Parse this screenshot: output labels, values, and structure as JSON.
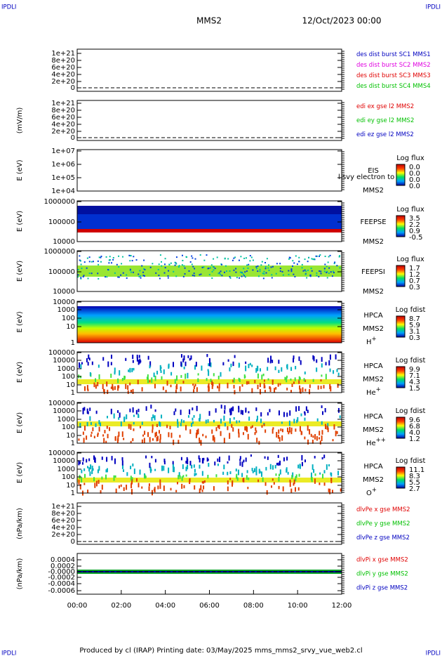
{
  "header": {
    "corner_left": "IPDLI",
    "corner_right": "IPDLI",
    "title": "MMS2",
    "date": "12/Oct/2023 00:00"
  },
  "panels": [
    {
      "ylabel": "",
      "yticks": [
        "1e+21",
        "8e+20",
        "6e+20",
        "4e+20",
        "2e+20",
        "0"
      ],
      "legend": [
        {
          "text": "des dist burst SC1 MMS1",
          "color": "#0000c0"
        },
        {
          "text": "des dist burst SC2 MMS2",
          "color": "#e000e0"
        },
        {
          "text": "des dist burst SC3 MMS3",
          "color": "#e00000"
        },
        {
          "text": "des dist burst SC4 MMS4",
          "color": "#00c000"
        }
      ]
    },
    {
      "ylabel": "(mV/m)",
      "yticks": [
        "1e+21",
        "8e+20",
        "6e+20",
        "4e+20",
        "2e+20",
        "0"
      ],
      "legend": [
        {
          "text": "edi ex gse l2 MMS2",
          "color": "#e00000"
        },
        {
          "text": "edi ey gse l2 MMS2",
          "color": "#00c000"
        },
        {
          "text": "edi ez gse l2 MMS2",
          "color": "#0000c0"
        }
      ]
    },
    {
      "ylabel": "E (eV)",
      "yticks": [
        "1e+07",
        "1e+06",
        "1e+05",
        "1e+04"
      ],
      "instrument": [
        "EIS",
        "MMS2"
      ],
      "overlay": "l svy electron to",
      "colorbar": {
        "title": "Log flux",
        "labels": [
          "0.0",
          "0.0",
          "0.0",
          "0.0"
        ]
      }
    },
    {
      "ylabel": "E (eV)",
      "yticks": [
        "1000000",
        "100000",
        "10000"
      ],
      "instrument": [
        "FEEPSE",
        "MMS2"
      ],
      "colorbar": {
        "title": "Log flux",
        "labels": [
          "3.5",
          "2.2",
          "0.9",
          "-0.5"
        ]
      }
    },
    {
      "ylabel": "E (eV)",
      "yticks": [
        "1000000",
        "100000",
        "10000"
      ],
      "instrument": [
        "FEEPSI",
        "MMS2"
      ],
      "colorbar": {
        "title": "Log flux",
        "labels": [
          "1.7",
          "1.2",
          "0.7",
          "0.3"
        ]
      }
    },
    {
      "ylabel": "E (eV)",
      "yticks": [
        "10000",
        "1000",
        "100",
        "10",
        "1"
      ],
      "instrument": [
        "HPCA",
        "MMS2"
      ],
      "species": {
        "base": "H",
        "sup": "+"
      },
      "colorbar": {
        "title": "Log fdist",
        "labels": [
          "8.7",
          "5.9",
          "3.1",
          "0.3"
        ]
      }
    },
    {
      "ylabel": "E (eV)",
      "yticks": [
        "100000",
        "10000",
        "1000",
        "100",
        "10",
        "1"
      ],
      "instrument": [
        "HPCA",
        "MMS2"
      ],
      "species": {
        "base": "He",
        "sup": "+"
      },
      "colorbar": {
        "title": "Log fdist",
        "labels": [
          "9.9",
          "7.1",
          "4.3",
          "1.5"
        ]
      }
    },
    {
      "ylabel": "E (eV)",
      "yticks": [
        "100000",
        "10000",
        "1000",
        "100",
        "10",
        "1"
      ],
      "instrument": [
        "HPCA",
        "MMS2"
      ],
      "species": {
        "base": "He",
        "sup": "++"
      },
      "colorbar": {
        "title": "Log fdist",
        "labels": [
          "9.6",
          "6.8",
          "4.0",
          "1.2"
        ]
      }
    },
    {
      "ylabel": "E (eV)",
      "yticks": [
        "100000",
        "10000",
        "1000",
        "100",
        "10",
        "1"
      ],
      "instrument": [
        "HPCA",
        "MMS2"
      ],
      "species": {
        "base": "O",
        "sup": "+"
      },
      "colorbar": {
        "title": "Log fdist",
        "labels": [
          "11.1",
          "8.3",
          "5.5",
          "2.7"
        ]
      }
    },
    {
      "ylabel": "(nPa/km)",
      "yticks": [
        "1e+21",
        "8e+20",
        "6e+20",
        "4e+20",
        "2e+20",
        "0"
      ],
      "legend": [
        {
          "text": "dlvPe x gse MMS2",
          "color": "#e00000"
        },
        {
          "text": "dlvPe y gse MMS2",
          "color": "#00c000"
        },
        {
          "text": "dlvPe z gse MMS2",
          "color": "#0000c0"
        }
      ]
    },
    {
      "ylabel": "(nPa/km)",
      "yticks": [
        "0.0004",
        "0.0002",
        "-0.0000",
        "-0.0002",
        "-0.0004",
        "-0.0006"
      ],
      "legend": [
        {
          "text": "dlvPi x gse MMS2",
          "color": "#e00000"
        },
        {
          "text": "dlvPi y gse MMS2",
          "color": "#00c000"
        },
        {
          "text": "dlvPi z gse MMS2",
          "color": "#0000c0"
        }
      ]
    }
  ],
  "xticks": [
    "00:00",
    "02:00",
    "04:00",
    "06:00",
    "08:00",
    "10:00",
    "12:00"
  ],
  "footer": "Produced by cl (IRAP)   Printing date: 03/May/2025   mms_mms2_srvy_vue_web2.cl"
}
